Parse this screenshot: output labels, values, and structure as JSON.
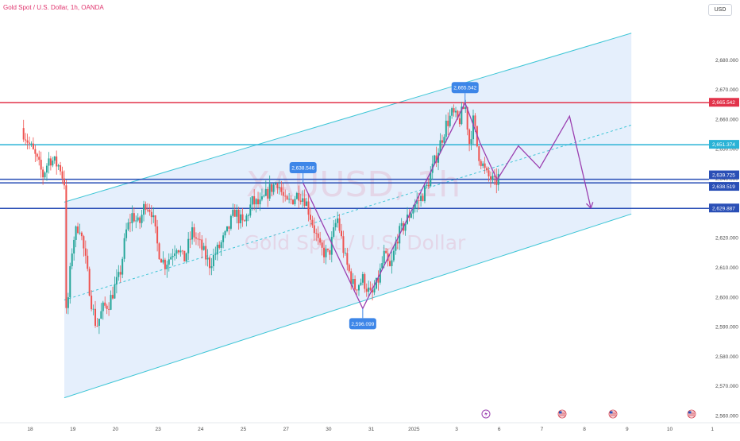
{
  "header": {
    "symbol": "Gold Spot / U.S. Dollar, 1h, OANDA",
    "currency": "USD"
  },
  "watermark": {
    "ticker": "XAUUSD, 1h",
    "name": "Gold Spot / U.S. Dollar"
  },
  "colors": {
    "up": "#26a69a",
    "down": "#ef5350",
    "channel_line": "#3fc6d6",
    "channel_fill": "#dce9fb",
    "support": "#2a4fb6",
    "resistance": "#e2334a",
    "zigzag": "#9b3fb0",
    "callout": "#3d86e8"
  },
  "chart_data": {
    "type": "candlestick",
    "title": "Gold Spot / U.S. Dollar, 1h, OANDA",
    "ylim": [
      2560,
      2690
    ],
    "y_ticks": [
      2560,
      2570,
      2580,
      2590,
      2600,
      2610,
      2620,
      2630,
      2640,
      2650,
      2660,
      2670,
      2680
    ],
    "y_tick_labels": [
      "2,560.000",
      "2,570.000",
      "2,580.000",
      "2,590.000",
      "2,600.000",
      "2,610.000",
      "2,620.000",
      "2,630.000",
      "2,640.000",
      "2,650.000",
      "2,660.000",
      "2,670.000",
      "2,680.000"
    ],
    "x_labels": [
      "18",
      "19",
      "20",
      "23",
      "24",
      "25",
      "27",
      "30",
      "31",
      "2025",
      "3",
      "6",
      "7",
      "8",
      "9",
      "10",
      "1"
    ],
    "x_label_days": [
      0,
      1,
      2,
      3,
      4,
      5,
      6,
      7,
      8,
      9,
      10,
      11,
      12,
      13,
      14,
      15,
      16
    ],
    "horizontal_levels": [
      {
        "value": 2665.542,
        "label": "2,665.542",
        "color": "#e2334a"
      },
      {
        "value": 2651.374,
        "label": "2,651.374",
        "color": "#2ab3d6"
      },
      {
        "value": 2639.725,
        "label": "2,639.725",
        "color": "#2a4fb6"
      },
      {
        "value": 2638.519,
        "label": "2,638.519",
        "color": "#2a4fb6"
      },
      {
        "value": 2629.887,
        "label": "2,629.887",
        "color": "#2a4fb6"
      }
    ],
    "channel": {
      "start_day": 0.8,
      "end_day": 14.1,
      "upper": [
        2632,
        2689
      ],
      "mid": [
        2599,
        2658
      ],
      "lower": [
        2566,
        2628
      ]
    },
    "callouts": [
      {
        "day": 6.4,
        "value": 2638.546,
        "label": "2,638.546"
      },
      {
        "day": 7.8,
        "value": 2596.099,
        "label": "2,596.099"
      },
      {
        "day": 10.2,
        "value": 2665.542,
        "label": "2,665.542"
      }
    ],
    "projection": {
      "days": [
        6.4,
        7.8,
        10.2,
        10.55,
        10.95,
        11.45,
        11.95,
        12.65,
        13.15
      ],
      "values": [
        2638.5,
        2596.1,
        2665.5,
        2652,
        2639.5,
        2651,
        2643.5,
        2661,
        2630
      ]
    },
    "series": [
      {
        "days": [
          -0.2,
          0.1,
          0.3,
          0.45,
          0.6,
          0.7,
          0.75,
          0.8,
          0.85,
          0.9,
          1.0,
          1.15,
          1.3,
          1.45,
          1.55,
          1.7,
          1.85,
          2.0,
          2.1,
          2.25,
          2.4,
          2.55,
          2.7,
          2.85,
          3.0,
          3.15,
          3.3,
          3.45,
          3.6,
          3.8,
          4.0,
          4.2,
          4.4,
          4.6,
          4.8,
          5.0,
          5.2,
          5.4,
          5.6,
          5.8,
          6.0,
          6.15,
          6.3,
          6.45,
          6.6,
          6.8,
          7.0,
          7.2,
          7.4,
          7.6,
          7.8,
          8.0,
          8.15,
          8.3,
          8.45,
          8.6,
          8.8,
          9.0,
          9.15,
          9.3,
          9.45,
          9.6,
          9.75,
          9.9,
          10.05,
          10.2,
          10.3,
          10.4,
          10.5,
          10.6,
          10.7,
          10.8,
          10.9,
          11.0
        ],
        "prices": [
          2657,
          2648,
          2641,
          2647,
          2645,
          2644,
          2641,
          2639,
          2590,
          2602,
          2619,
          2625,
          2612,
          2597,
          2590,
          2596,
          2598,
          2604,
          2607,
          2622,
          2628,
          2624,
          2632,
          2629,
          2616,
          2611,
          2614,
          2618,
          2612,
          2622,
          2617,
          2611,
          2616,
          2621,
          2629,
          2624,
          2632,
          2631,
          2636,
          2639,
          2631,
          2633,
          2635,
          2633,
          2626,
          2616,
          2614,
          2627,
          2612,
          2603,
          2606,
          2600,
          2605,
          2614,
          2609,
          2620,
          2625,
          2631,
          2633,
          2637,
          2644,
          2651,
          2658,
          2662,
          2659,
          2665,
          2652,
          2660,
          2649,
          2645,
          2641,
          2640,
          2638,
          2641
        ]
      }
    ]
  }
}
